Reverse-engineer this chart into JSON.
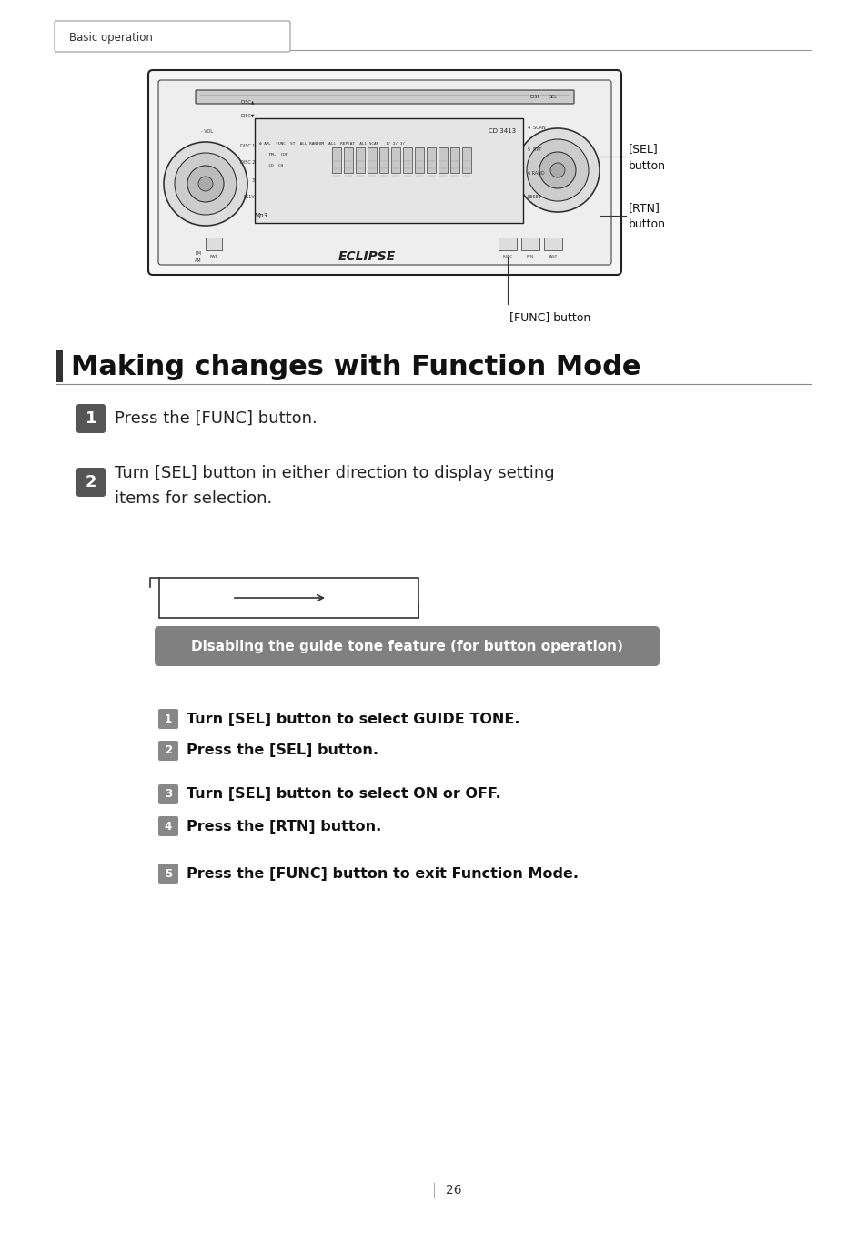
{
  "page_bg": "#ffffff",
  "header_tab_text": "Basic operation",
  "title_text": "Making changes with Function Mode",
  "title_fontsize": 22,
  "step1_text": "Press the [FUNC] button.",
  "step2_text_line1": "Turn [SEL] button in either direction to display setting",
  "step2_text_line2": "items for selection.",
  "section_label": "Disabling the guide tone feature (for button operation)",
  "section_label_bg": "#808080",
  "section_label_color": "#ffffff",
  "substep1_text": "Turn [SEL] button to select GUIDE TONE.",
  "substep2_text": "Press the [SEL] button.",
  "substep3_text": "Turn [SEL] button to select ON or OFF.",
  "substep4_text": "Press the [RTN] button.",
  "step5_text": "Press the [FUNC] button to exit Function Mode.",
  "page_number": "26",
  "icon_dark": "#4a4a4a",
  "icon_medium": "#7a7a7a",
  "icon_light": "#999999"
}
